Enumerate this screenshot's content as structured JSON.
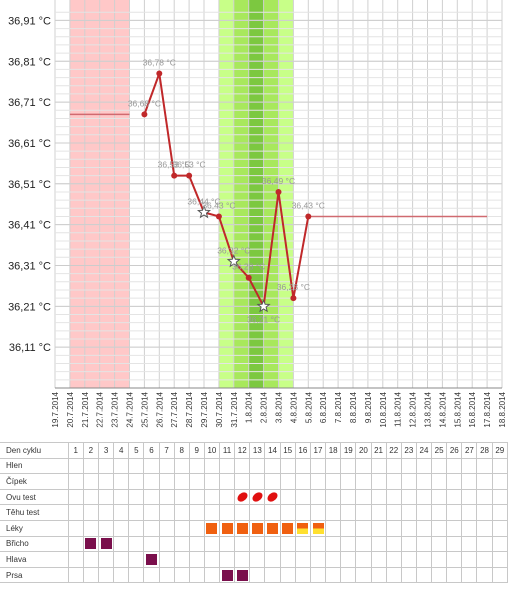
{
  "chart_data": {
    "type": "line",
    "y_ticks": [
      "36,91 °C",
      "36,81 °C",
      "36,71 °C",
      "36,61 °C",
      "36,51 °C",
      "36,41 °C",
      "36,31 °C",
      "36,21 °C",
      "36,11 °C"
    ],
    "y_tick_values": [
      36.91,
      36.81,
      36.71,
      36.61,
      36.51,
      36.41,
      36.31,
      36.21,
      36.11
    ],
    "ylim": [
      36.01,
      36.96
    ],
    "x_labels": [
      "19.7.2014",
      "20.7.2014",
      "21.7.2014",
      "22.7.2014",
      "23.7.2014",
      "24.7.2014",
      "25.7.2014",
      "26.7.2014",
      "27.7.2014",
      "28.7.2014",
      "29.7.2014",
      "30.7.2014",
      "31.7.2014",
      "1.8.2014",
      "2.8.2014",
      "3.8.2014",
      "4.8.2014",
      "5.8.2014",
      "6.8.2014",
      "7.8.2014",
      "8.8.2014",
      "9.8.2014",
      "10.8.2014",
      "11.8.2014",
      "12.8.2014",
      "13.8.2014",
      "14.8.2014",
      "15.8.2014",
      "16.8.2014",
      "17.8.2014",
      "18.8.2014"
    ],
    "series": [
      {
        "x": [
          "25.7.2014",
          "26.7.2014",
          "27.7.2014",
          "28.7.2014",
          "29.7.2014",
          "30.7.2014",
          "31.7.2014",
          "1.8.2014",
          "2.8.2014",
          "3.8.2014",
          "4.8.2014",
          "5.8.2014"
        ],
        "values": [
          36.68,
          36.78,
          36.53,
          36.53,
          36.44,
          36.43,
          36.32,
          36.28,
          36.21,
          36.49,
          36.23,
          36.43
        ],
        "labels": [
          "36,68 °C",
          "36,78 °C",
          "36,53 °C",
          "36,53 °C",
          "36,44 °C",
          "36,43 °C",
          "36,32 °C",
          "36,28 °C",
          "36,21 °C",
          "36,49 °C",
          "36,23 °C",
          "36,43 °C"
        ],
        "markers": [
          "dot",
          "dot",
          "dot",
          "dot",
          "star",
          "dot",
          "star",
          "dot",
          "star",
          "dot",
          "dot",
          "dot"
        ],
        "color": "#c0282a"
      }
    ],
    "baselines": [
      {
        "from": "20.7.2014",
        "to": "24.7.2014",
        "value": 36.68,
        "color": "#d06a70"
      },
      {
        "from": "5.8.2014",
        "to": "17.8.2014",
        "value": 36.43,
        "color": "#d06a70"
      }
    ],
    "bands": [
      {
        "from": "20.7.2014",
        "to": "24.7.2014",
        "color": "#ffc8c8"
      },
      {
        "from": "30.7.2014",
        "to": "4.8.2014",
        "color": "#c8ff88"
      },
      {
        "from": "31.7.2014",
        "to": "3.8.2014",
        "color": "#a8e85c"
      },
      {
        "from": "1.8.2014",
        "to": "2.8.2014",
        "color": "#7cc840"
      }
    ],
    "grid": true,
    "colors": {
      "line": "#c0282a",
      "star_fill": "#ffffff"
    }
  },
  "table": {
    "header_label": "Den cyklu",
    "days": [
      "1",
      "2",
      "3",
      "4",
      "5",
      "6",
      "7",
      "8",
      "9",
      "10",
      "11",
      "12",
      "13",
      "14",
      "15",
      "16",
      "17",
      "18",
      "19",
      "20",
      "21",
      "22",
      "23",
      "24",
      "25",
      "26",
      "27",
      "28",
      "29"
    ],
    "rows": [
      {
        "label": "Hlen",
        "marks": {}
      },
      {
        "label": "Čípek",
        "marks": {}
      },
      {
        "label": "Ovu test",
        "marks": {
          "12": "drop",
          "13": "drop",
          "14": "drop"
        }
      },
      {
        "label": "Těhu test",
        "marks": {}
      },
      {
        "label": "Léky",
        "marks": {
          "10": "orange",
          "11": "orange",
          "12": "orange",
          "13": "orange",
          "14": "orange",
          "15": "orange",
          "16": "half",
          "17": "half"
        }
      },
      {
        "label": "Břicho",
        "marks": {
          "2": "purple",
          "3": "purple"
        }
      },
      {
        "label": "Hlava",
        "marks": {
          "6": "purple"
        }
      },
      {
        "label": "Prsa",
        "marks": {
          "11": "purple",
          "12": "purple"
        }
      }
    ]
  }
}
